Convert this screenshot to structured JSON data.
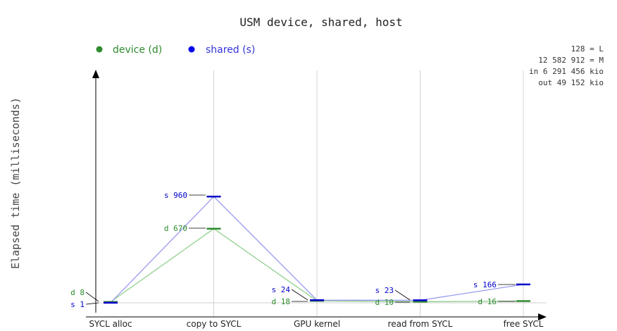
{
  "chart_data": {
    "type": "line",
    "title": "USM device, shared, host",
    "ylabel": "Elapsed time (milliseconds)",
    "xlabel": "",
    "categories": [
      "SYCL alloc",
      "copy to SYCL",
      "GPU kernel",
      "read from SYCL",
      "free SYCL"
    ],
    "series": [
      {
        "name": "device (d)",
        "prefix": "d",
        "color": "#2e8b2e",
        "line_color": "#90d090",
        "values": [
          8,
          670,
          18,
          10,
          16
        ]
      },
      {
        "name": "shared (s)",
        "prefix": "s",
        "color": "#0000cc",
        "line_color": "#9a9af0",
        "values": [
          1,
          960,
          24,
          23,
          166
        ]
      }
    ],
    "ylim": [
      0,
      2100
    ],
    "grid": "vertical",
    "legend": "top-left",
    "info_lines": [
      "128 = L",
      "12 582 912 = M",
      "in 6 291 456 kio",
      "out 49 152 kio"
    ]
  }
}
